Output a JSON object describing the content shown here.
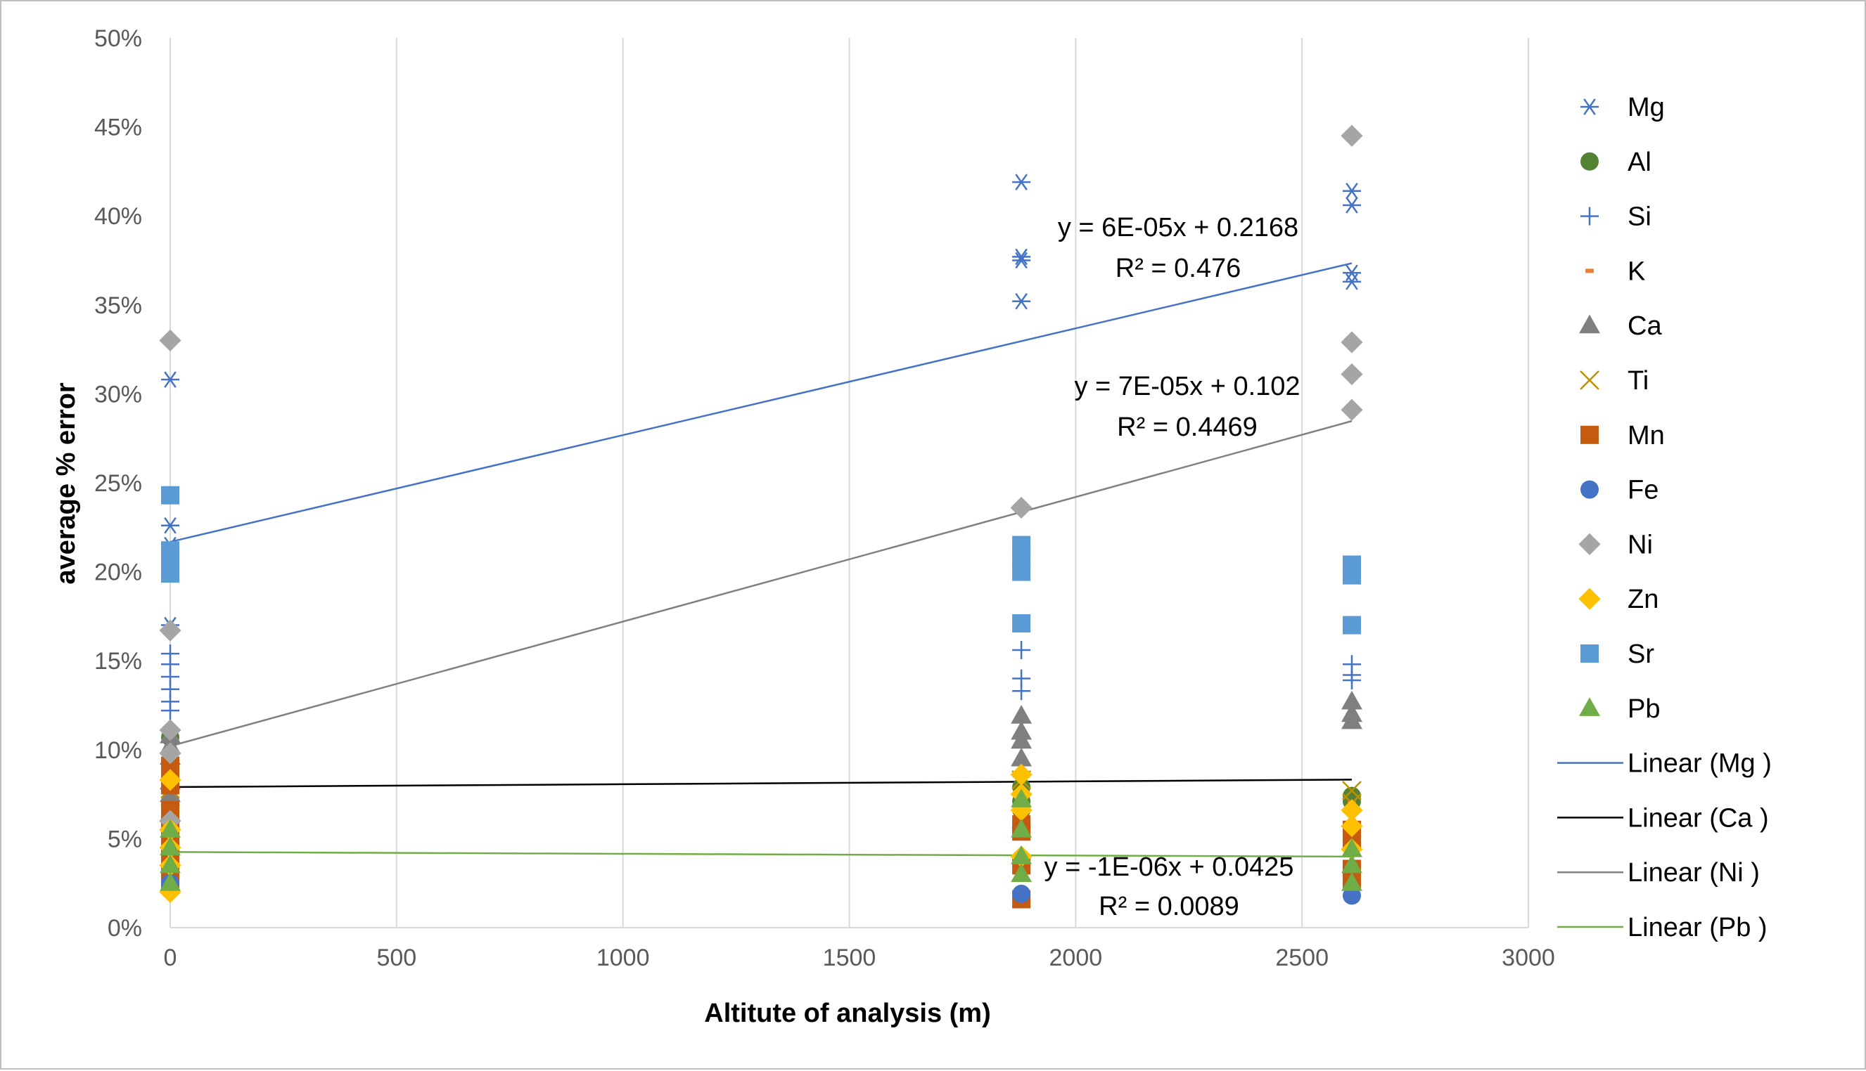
{
  "chart_data": {
    "type": "scatter",
    "title": "",
    "xlabel": "Altitute of analysis (m)",
    "ylabel": "average % error",
    "xlim": [
      0,
      3000
    ],
    "ylim": [
      0,
      0.5
    ],
    "x_ticks": [
      "0",
      "500",
      "1000",
      "1500",
      "2000",
      "2500",
      "3000"
    ],
    "y_ticks": [
      "0%",
      "5%",
      "10%",
      "15%",
      "20%",
      "25%",
      "30%",
      "35%",
      "40%",
      "45%",
      "50%"
    ],
    "grid": "vertical",
    "legend_position": "right",
    "series": [
      {
        "name": "Mg",
        "marker": "asterisk",
        "color": "#4472c4",
        "points": [
          [
            0,
            0.308
          ],
          [
            0,
            0.226
          ],
          [
            0,
            0.215
          ],
          [
            0,
            0.17
          ],
          [
            1880,
            0.419
          ],
          [
            1880,
            0.377
          ],
          [
            1880,
            0.375
          ],
          [
            1880,
            0.352
          ],
          [
            2610,
            0.414
          ],
          [
            2610,
            0.406
          ],
          [
            2610,
            0.368
          ],
          [
            2610,
            0.363
          ]
        ]
      },
      {
        "name": "Al",
        "marker": "circle",
        "color": "#548235",
        "points": [
          [
            0,
            0.107
          ],
          [
            0,
            0.05
          ],
          [
            0,
            0.04
          ],
          [
            1880,
            0.079
          ],
          [
            1880,
            0.071
          ],
          [
            1880,
            0.066
          ],
          [
            2610,
            0.074
          ],
          [
            2610,
            0.071
          ]
        ]
      },
      {
        "name": "Si",
        "marker": "plus",
        "color": "#4472c4",
        "points": [
          [
            0,
            0.154
          ],
          [
            0,
            0.148
          ],
          [
            0,
            0.141
          ],
          [
            0,
            0.134
          ],
          [
            0,
            0.127
          ],
          [
            0,
            0.122
          ],
          [
            1880,
            0.156
          ],
          [
            1880,
            0.14
          ],
          [
            1880,
            0.133
          ],
          [
            2610,
            0.148
          ],
          [
            2610,
            0.142
          ],
          [
            2610,
            0.139
          ]
        ]
      },
      {
        "name": "K",
        "marker": "dash",
        "color": "#ed7d31",
        "points": [
          [
            0,
            0.09
          ],
          [
            0,
            0.07
          ],
          [
            0,
            0.055
          ],
          [
            0,
            0.045
          ],
          [
            0,
            0.035
          ],
          [
            1880,
            0.07
          ],
          [
            1880,
            0.055
          ],
          [
            2610,
            0.07
          ],
          [
            2610,
            0.06
          ]
        ]
      },
      {
        "name": "Ca",
        "marker": "triangle",
        "color": "#7f7f7f",
        "points": [
          [
            0,
            0.108
          ],
          [
            0,
            0.102
          ],
          [
            0,
            0.096
          ],
          [
            0,
            0.082
          ],
          [
            0,
            0.075
          ],
          [
            1880,
            0.119
          ],
          [
            1880,
            0.11
          ],
          [
            1880,
            0.105
          ],
          [
            1880,
            0.095
          ],
          [
            2610,
            0.127
          ],
          [
            2610,
            0.12
          ],
          [
            2610,
            0.116
          ]
        ]
      },
      {
        "name": "Ti",
        "marker": "x",
        "color": "#bf9000",
        "points": [
          [
            0,
            0.078
          ],
          [
            0,
            0.064
          ],
          [
            0,
            0.056
          ],
          [
            1880,
            0.083
          ],
          [
            1880,
            0.061
          ],
          [
            2610,
            0.077
          ],
          [
            2610,
            0.07
          ]
        ]
      },
      {
        "name": "Mn",
        "marker": "square",
        "color": "#c55a11",
        "points": [
          [
            0,
            0.091
          ],
          [
            0,
            0.087
          ],
          [
            0,
            0.08
          ],
          [
            0,
            0.066
          ],
          [
            0,
            0.059
          ],
          [
            0,
            0.052
          ],
          [
            0,
            0.046
          ],
          [
            0,
            0.04
          ],
          [
            0,
            0.033
          ],
          [
            0,
            0.025
          ],
          [
            1880,
            0.058
          ],
          [
            1880,
            0.054
          ],
          [
            1880,
            0.035
          ],
          [
            1880,
            0.016
          ],
          [
            2610,
            0.055
          ],
          [
            2610,
            0.05
          ],
          [
            2610,
            0.033
          ],
          [
            2610,
            0.027
          ]
        ]
      },
      {
        "name": "Fe",
        "marker": "circle",
        "color": "#4472c4",
        "points": [
          [
            0,
            0.025
          ],
          [
            1880,
            0.019
          ],
          [
            2610,
            0.018
          ]
        ]
      },
      {
        "name": "Ni",
        "marker": "diamond",
        "color": "#a5a5a5",
        "points": [
          [
            0,
            0.33
          ],
          [
            0,
            0.167
          ],
          [
            0,
            0.111
          ],
          [
            0,
            0.098
          ],
          [
            0,
            0.06
          ],
          [
            1880,
            0.236
          ],
          [
            2610,
            0.445
          ],
          [
            2610,
            0.329
          ],
          [
            2610,
            0.311
          ],
          [
            2610,
            0.291
          ]
        ]
      },
      {
        "name": "Zn",
        "marker": "diamond",
        "color": "#ffc000",
        "points": [
          [
            0,
            0.083
          ],
          [
            0,
            0.055
          ],
          [
            0,
            0.045
          ],
          [
            0,
            0.035
          ],
          [
            0,
            0.02
          ],
          [
            1880,
            0.086
          ],
          [
            1880,
            0.075
          ],
          [
            1880,
            0.066
          ],
          [
            1880,
            0.04
          ],
          [
            2610,
            0.066
          ],
          [
            2610,
            0.057
          ],
          [
            2610,
            0.044
          ]
        ]
      },
      {
        "name": "Sr",
        "marker": "square",
        "color": "#5b9bd5",
        "points": [
          [
            0,
            0.243
          ],
          [
            0,
            0.212
          ],
          [
            0,
            0.205
          ],
          [
            0,
            0.199
          ],
          [
            1880,
            0.215
          ],
          [
            1880,
            0.208
          ],
          [
            1880,
            0.2
          ],
          [
            1880,
            0.171
          ],
          [
            2610,
            0.204
          ],
          [
            2610,
            0.198
          ],
          [
            2610,
            0.17
          ]
        ]
      },
      {
        "name": "Pb",
        "marker": "triangle",
        "color": "#70ad47",
        "points": [
          [
            0,
            0.055
          ],
          [
            0,
            0.045
          ],
          [
            0,
            0.035
          ],
          [
            0,
            0.025
          ],
          [
            1880,
            0.072
          ],
          [
            1880,
            0.055
          ],
          [
            1880,
            0.04
          ],
          [
            1880,
            0.03
          ],
          [
            2610,
            0.044
          ],
          [
            2610,
            0.035
          ],
          [
            2610,
            0.025
          ]
        ]
      }
    ],
    "trendlines": [
      {
        "name": "Linear (Mg )",
        "color": "#4472c4",
        "slope": 6e-05,
        "intercept": 0.2168,
        "x_range": [
          0,
          2610
        ],
        "equation": "y = 6E-05x + 0.2168",
        "r2": "R² = 0.476"
      },
      {
        "name": "Linear (Ca )",
        "color": "#000000",
        "slope": 1.6e-06,
        "intercept": 0.079,
        "x_range": [
          0,
          2610
        ],
        "equation": "",
        "r2": ""
      },
      {
        "name": "Linear (Ni )",
        "color": "#808080",
        "slope": 7e-05,
        "intercept": 0.102,
        "x_range": [
          0,
          2610
        ],
        "equation": "y = 7E-05x + 0.102",
        "r2": "R² = 0.4469"
      },
      {
        "name": "Linear (Pb )",
        "color": "#70ad47",
        "slope": -1e-06,
        "intercept": 0.0425,
        "x_range": [
          0,
          2610
        ],
        "equation": "y = -1E-06x + 0.0425",
        "r2": "R² = 0.0089"
      }
    ]
  }
}
